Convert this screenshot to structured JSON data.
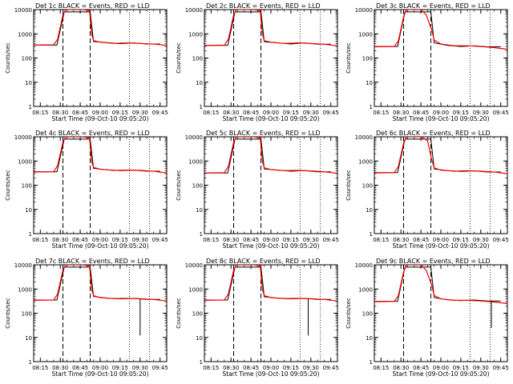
{
  "figure": {
    "xlabel": "Start Time (09-Oct-10 09:05:20)",
    "ylabel": "Counts/sec"
  },
  "legend_text": "BLACK = Events, RED = LLD",
  "colors": {
    "events": "#000000",
    "lld": "#ff0000",
    "axes": "#000000"
  },
  "chart_data": [
    {
      "type": "line",
      "title": "Det 1c BLACK = Events, RED = LLD",
      "detector": "Det 1c",
      "yscale": "log",
      "ylim": [
        1,
        10000
      ],
      "xlim": [
        0,
        2.0
      ],
      "x_ticks": [
        "08:15",
        "08:30",
        "08:45",
        "09:00",
        "09:15",
        "09:30",
        "09:45"
      ],
      "y_ticks": [
        "1",
        "10",
        "100",
        "1000",
        "10000"
      ],
      "dashed_lines_x": [
        0.44,
        0.85
      ],
      "dotted_lines_x": [
        1.44,
        1.74
      ],
      "series": [
        {
          "name": "Events",
          "color": "#000000",
          "x": [
            0,
            0.35,
            0.46,
            0.85,
            0.9,
            1.1,
            1.3,
            1.5,
            1.7,
            1.9
          ],
          "y": [
            340,
            340,
            8000,
            8000,
            480,
            430,
            390,
            420,
            380,
            380
          ]
        },
        {
          "name": "LLD",
          "color": "#ff0000",
          "x": [
            0,
            0.3,
            0.36,
            0.44,
            0.48,
            0.52,
            0.6,
            0.75,
            0.84,
            0.87,
            0.9,
            1.0,
            1.2,
            1.4,
            1.6,
            1.8,
            2.0
          ],
          "y": [
            340,
            350,
            600,
            6000,
            9800,
            10000,
            10000,
            10000,
            9000,
            1000,
            520,
            450,
            400,
            420,
            400,
            380,
            330
          ]
        }
      ],
      "spikes": []
    },
    {
      "type": "line",
      "title": "Det 2c BLACK = Events, RED = LLD",
      "detector": "Det 2c",
      "yscale": "log",
      "ylim": [
        1,
        10000
      ],
      "xlim": [
        0,
        2.0
      ],
      "x_ticks": [
        "08:15",
        "08:30",
        "08:45",
        "09:00",
        "09:15",
        "09:30",
        "09:45"
      ],
      "y_ticks": [
        "1",
        "10",
        "100",
        "1000",
        "10000"
      ],
      "dashed_lines_x": [
        0.44,
        0.85
      ],
      "dotted_lines_x": [
        1.44,
        1.74
      ],
      "series": [
        {
          "name": "Events",
          "color": "#000000",
          "x": [
            0,
            0.35,
            0.46,
            0.85,
            0.9,
            1.1,
            1.3,
            1.5,
            1.7,
            1.9
          ],
          "y": [
            330,
            330,
            8000,
            8000,
            470,
            420,
            380,
            420,
            370,
            370
          ]
        },
        {
          "name": "LLD",
          "color": "#ff0000",
          "x": [
            0,
            0.3,
            0.36,
            0.44,
            0.48,
            0.52,
            0.6,
            0.75,
            0.84,
            0.87,
            0.9,
            1.0,
            1.2,
            1.4,
            1.6,
            1.8,
            2.0
          ],
          "y": [
            330,
            340,
            600,
            6000,
            9800,
            10000,
            10000,
            10000,
            9000,
            1000,
            520,
            450,
            400,
            420,
            400,
            370,
            320
          ]
        }
      ],
      "spikes": []
    },
    {
      "type": "line",
      "title": "Det 3c BLACK = Events, RED = LLD",
      "detector": "Det 3c",
      "yscale": "log",
      "ylim": [
        1,
        10000
      ],
      "xlim": [
        0,
        2.0
      ],
      "x_ticks": [
        "08:15",
        "08:30",
        "08:45",
        "09:00",
        "09:15",
        "09:30",
        "09:45"
      ],
      "y_ticks": [
        "1",
        "10",
        "100",
        "1000",
        "10000"
      ],
      "dashed_lines_x": [
        0.44,
        0.85
      ],
      "dotted_lines_x": [
        1.44,
        1.74
      ],
      "series": [
        {
          "name": "Events",
          "color": "#000000",
          "x": [
            0,
            0.35,
            0.46,
            0.85,
            0.9,
            1.1,
            1.3,
            1.5,
            1.7,
            1.9
          ],
          "y": [
            300,
            300,
            8000,
            8000,
            420,
            330,
            300,
            320,
            290,
            290
          ]
        },
        {
          "name": "LLD",
          "color": "#ff0000",
          "x": [
            0,
            0.3,
            0.36,
            0.44,
            0.48,
            0.52,
            0.6,
            0.7,
            0.78,
            0.86,
            0.9,
            1.0,
            1.2,
            1.4,
            1.6,
            1.8,
            2.0
          ],
          "y": [
            290,
            300,
            500,
            5000,
            9500,
            10000,
            10000,
            10000,
            6000,
            1500,
            550,
            380,
            320,
            320,
            300,
            270,
            230
          ]
        }
      ],
      "spikes": []
    },
    {
      "type": "line",
      "title": "Det 4c BLACK = Events, RED = LLD",
      "detector": "Det 4c",
      "yscale": "log",
      "ylim": [
        1,
        10000
      ],
      "xlim": [
        0,
        2.0
      ],
      "x_ticks": [
        "08:15",
        "08:30",
        "08:45",
        "09:00",
        "09:15",
        "09:30",
        "09:45"
      ],
      "y_ticks": [
        "1",
        "10",
        "100",
        "1000",
        "10000"
      ],
      "dashed_lines_x": [
        0.44,
        0.85
      ],
      "dotted_lines_x": [
        1.44,
        1.74
      ],
      "series": [
        {
          "name": "Events",
          "color": "#000000",
          "x": [
            0,
            0.35,
            0.46,
            0.85,
            0.9,
            1.1,
            1.3,
            1.5,
            1.7,
            1.9
          ],
          "y": [
            360,
            360,
            8000,
            8000,
            500,
            430,
            400,
            420,
            380,
            380
          ]
        },
        {
          "name": "LLD",
          "color": "#ff0000",
          "x": [
            0,
            0.3,
            0.36,
            0.44,
            0.48,
            0.52,
            0.6,
            0.75,
            0.84,
            0.87,
            0.9,
            1.0,
            1.2,
            1.4,
            1.6,
            1.8,
            2.0
          ],
          "y": [
            350,
            360,
            650,
            6000,
            9800,
            10000,
            10000,
            10000,
            9000,
            1000,
            540,
            460,
            410,
            420,
            410,
            380,
            320
          ]
        }
      ],
      "spikes": []
    },
    {
      "type": "line",
      "title": "Det 5c BLACK = Events, RED = LLD",
      "detector": "Det 5c",
      "yscale": "log",
      "ylim": [
        1,
        10000
      ],
      "xlim": [
        0,
        2.0
      ],
      "x_ticks": [
        "08:15",
        "08:30",
        "08:45",
        "09:00",
        "09:15",
        "09:30",
        "09:45"
      ],
      "y_ticks": [
        "1",
        "10",
        "100",
        "1000",
        "10000"
      ],
      "dashed_lines_x": [
        0.44,
        0.85
      ],
      "dotted_lines_x": [
        1.44,
        1.74
      ],
      "series": [
        {
          "name": "Events",
          "color": "#000000",
          "x": [
            0,
            0.35,
            0.46,
            0.85,
            0.9,
            1.1,
            1.3,
            1.5,
            1.7,
            1.9
          ],
          "y": [
            320,
            320,
            8000,
            8000,
            470,
            420,
            380,
            400,
            360,
            360
          ]
        },
        {
          "name": "LLD",
          "color": "#ff0000",
          "x": [
            0,
            0.3,
            0.36,
            0.44,
            0.48,
            0.52,
            0.6,
            0.75,
            0.84,
            0.87,
            0.9,
            1.0,
            1.2,
            1.4,
            1.6,
            1.8,
            2.0
          ],
          "y": [
            320,
            330,
            600,
            6000,
            9800,
            10000,
            10000,
            10000,
            9000,
            1000,
            520,
            440,
            400,
            410,
            390,
            360,
            310
          ]
        }
      ],
      "spikes": []
    },
    {
      "type": "line",
      "title": "Det 6c BLACK = Events, RED = LLD",
      "detector": "Det 6c",
      "yscale": "log",
      "ylim": [
        1,
        10000
      ],
      "xlim": [
        0,
        2.0
      ],
      "x_ticks": [
        "08:15",
        "08:30",
        "08:45",
        "09:00",
        "09:15",
        "09:30",
        "09:45"
      ],
      "y_ticks": [
        "1",
        "10",
        "100",
        "1000",
        "10000"
      ],
      "dashed_lines_x": [
        0.44,
        0.85
      ],
      "dotted_lines_x": [
        1.44,
        1.74
      ],
      "series": [
        {
          "name": "Events",
          "color": "#000000",
          "x": [
            0,
            0.35,
            0.46,
            0.85,
            0.9,
            1.1,
            1.3,
            1.5,
            1.7,
            1.9
          ],
          "y": [
            330,
            330,
            8000,
            8000,
            470,
            400,
            370,
            390,
            350,
            350
          ]
        },
        {
          "name": "LLD",
          "color": "#ff0000",
          "x": [
            0,
            0.3,
            0.36,
            0.44,
            0.48,
            0.52,
            0.6,
            0.7,
            0.8,
            0.86,
            0.9,
            1.0,
            1.2,
            1.4,
            1.6,
            1.8,
            2.0
          ],
          "y": [
            320,
            330,
            580,
            5500,
            9500,
            10000,
            10000,
            10000,
            7000,
            1200,
            520,
            420,
            380,
            400,
            380,
            350,
            300
          ]
        }
      ],
      "spikes": []
    },
    {
      "type": "line",
      "title": "Det 7c BLACK = Events, RED = LLD",
      "detector": "Det 7c",
      "yscale": "log",
      "ylim": [
        1,
        10000
      ],
      "xlim": [
        0,
        2.0
      ],
      "x_ticks": [
        "08:15",
        "08:30",
        "08:45",
        "09:00",
        "09:15",
        "09:30",
        "09:45"
      ],
      "y_ticks": [
        "1",
        "10",
        "100",
        "1000",
        "10000"
      ],
      "dashed_lines_x": [
        0.44,
        0.85
      ],
      "dotted_lines_x": [
        1.44,
        1.74
      ],
      "series": [
        {
          "name": "Events",
          "color": "#000000",
          "x": [
            0,
            0.35,
            0.46,
            0.85,
            0.9,
            1.1,
            1.3,
            1.5,
            1.7,
            1.9
          ],
          "y": [
            350,
            350,
            8000,
            8000,
            490,
            420,
            390,
            410,
            370,
            370
          ]
        },
        {
          "name": "LLD",
          "color": "#ff0000",
          "x": [
            0,
            0.3,
            0.36,
            0.44,
            0.48,
            0.52,
            0.6,
            0.75,
            0.84,
            0.87,
            0.9,
            1.0,
            1.2,
            1.4,
            1.6,
            1.8,
            2.0
          ],
          "y": [
            340,
            350,
            620,
            6000,
            9800,
            10000,
            10000,
            10000,
            9000,
            1000,
            530,
            440,
            400,
            410,
            400,
            370,
            320
          ]
        }
      ],
      "spikes": [
        {
          "x": 1.6,
          "y_top": 380,
          "y_bottom": 12
        }
      ]
    },
    {
      "type": "line",
      "title": "Det 8c BLACK = Events, RED = LLD",
      "detector": "Det 8c",
      "yscale": "log",
      "ylim": [
        1,
        10000
      ],
      "xlim": [
        0,
        2.0
      ],
      "x_ticks": [
        "08:15",
        "08:30",
        "08:45",
        "09:00",
        "09:15",
        "09:30",
        "09:45"
      ],
      "y_ticks": [
        "1",
        "10",
        "100",
        "1000",
        "10000"
      ],
      "dashed_lines_x": [
        0.44,
        0.85
      ],
      "dotted_lines_x": [
        1.44,
        1.74
      ],
      "series": [
        {
          "name": "Events",
          "color": "#000000",
          "x": [
            0,
            0.35,
            0.46,
            0.85,
            0.9,
            1.1,
            1.3,
            1.5,
            1.7,
            1.9
          ],
          "y": [
            350,
            350,
            8000,
            8000,
            480,
            420,
            390,
            410,
            370,
            370
          ]
        },
        {
          "name": "LLD",
          "color": "#ff0000",
          "x": [
            0,
            0.3,
            0.36,
            0.44,
            0.48,
            0.52,
            0.6,
            0.75,
            0.84,
            0.87,
            0.9,
            1.0,
            1.2,
            1.4,
            1.6,
            1.8,
            2.0
          ],
          "y": [
            340,
            350,
            620,
            6000,
            9800,
            10000,
            10000,
            10000,
            9000,
            1000,
            530,
            440,
            400,
            410,
            400,
            370,
            320
          ]
        }
      ],
      "spikes": [
        {
          "x": 1.56,
          "y_top": 380,
          "y_bottom": 12
        }
      ]
    },
    {
      "type": "line",
      "title": "Det 9c BLACK = Events, RED = LLD",
      "detector": "Det 9c",
      "yscale": "log",
      "ylim": [
        1,
        10000
      ],
      "xlim": [
        0,
        2.0
      ],
      "x_ticks": [
        "08:15",
        "08:30",
        "08:45",
        "09:00",
        "09:15",
        "09:30",
        "09:45"
      ],
      "y_ticks": [
        "1",
        "10",
        "100",
        "1000",
        "10000"
      ],
      "dashed_lines_x": [
        0.44,
        0.85
      ],
      "dotted_lines_x": [
        1.44,
        1.74
      ],
      "series": [
        {
          "name": "Events",
          "color": "#000000",
          "x": [
            0,
            0.35,
            0.46,
            0.85,
            0.9,
            1.1,
            1.3,
            1.5,
            1.7,
            1.9
          ],
          "y": [
            310,
            310,
            8000,
            8000,
            440,
            360,
            330,
            350,
            320,
            320
          ]
        },
        {
          "name": "LLD",
          "color": "#ff0000",
          "x": [
            0,
            0.3,
            0.36,
            0.44,
            0.48,
            0.52,
            0.6,
            0.7,
            0.78,
            0.86,
            0.9,
            1.0,
            1.2,
            1.4,
            1.6,
            1.8,
            2.0
          ],
          "y": [
            300,
            310,
            520,
            5000,
            9500,
            10000,
            10000,
            10000,
            6000,
            1500,
            540,
            390,
            340,
            340,
            320,
            290,
            250
          ]
        }
      ],
      "spikes": [
        {
          "x": 1.76,
          "y_top": 340,
          "y_bottom": 25
        }
      ]
    }
  ]
}
